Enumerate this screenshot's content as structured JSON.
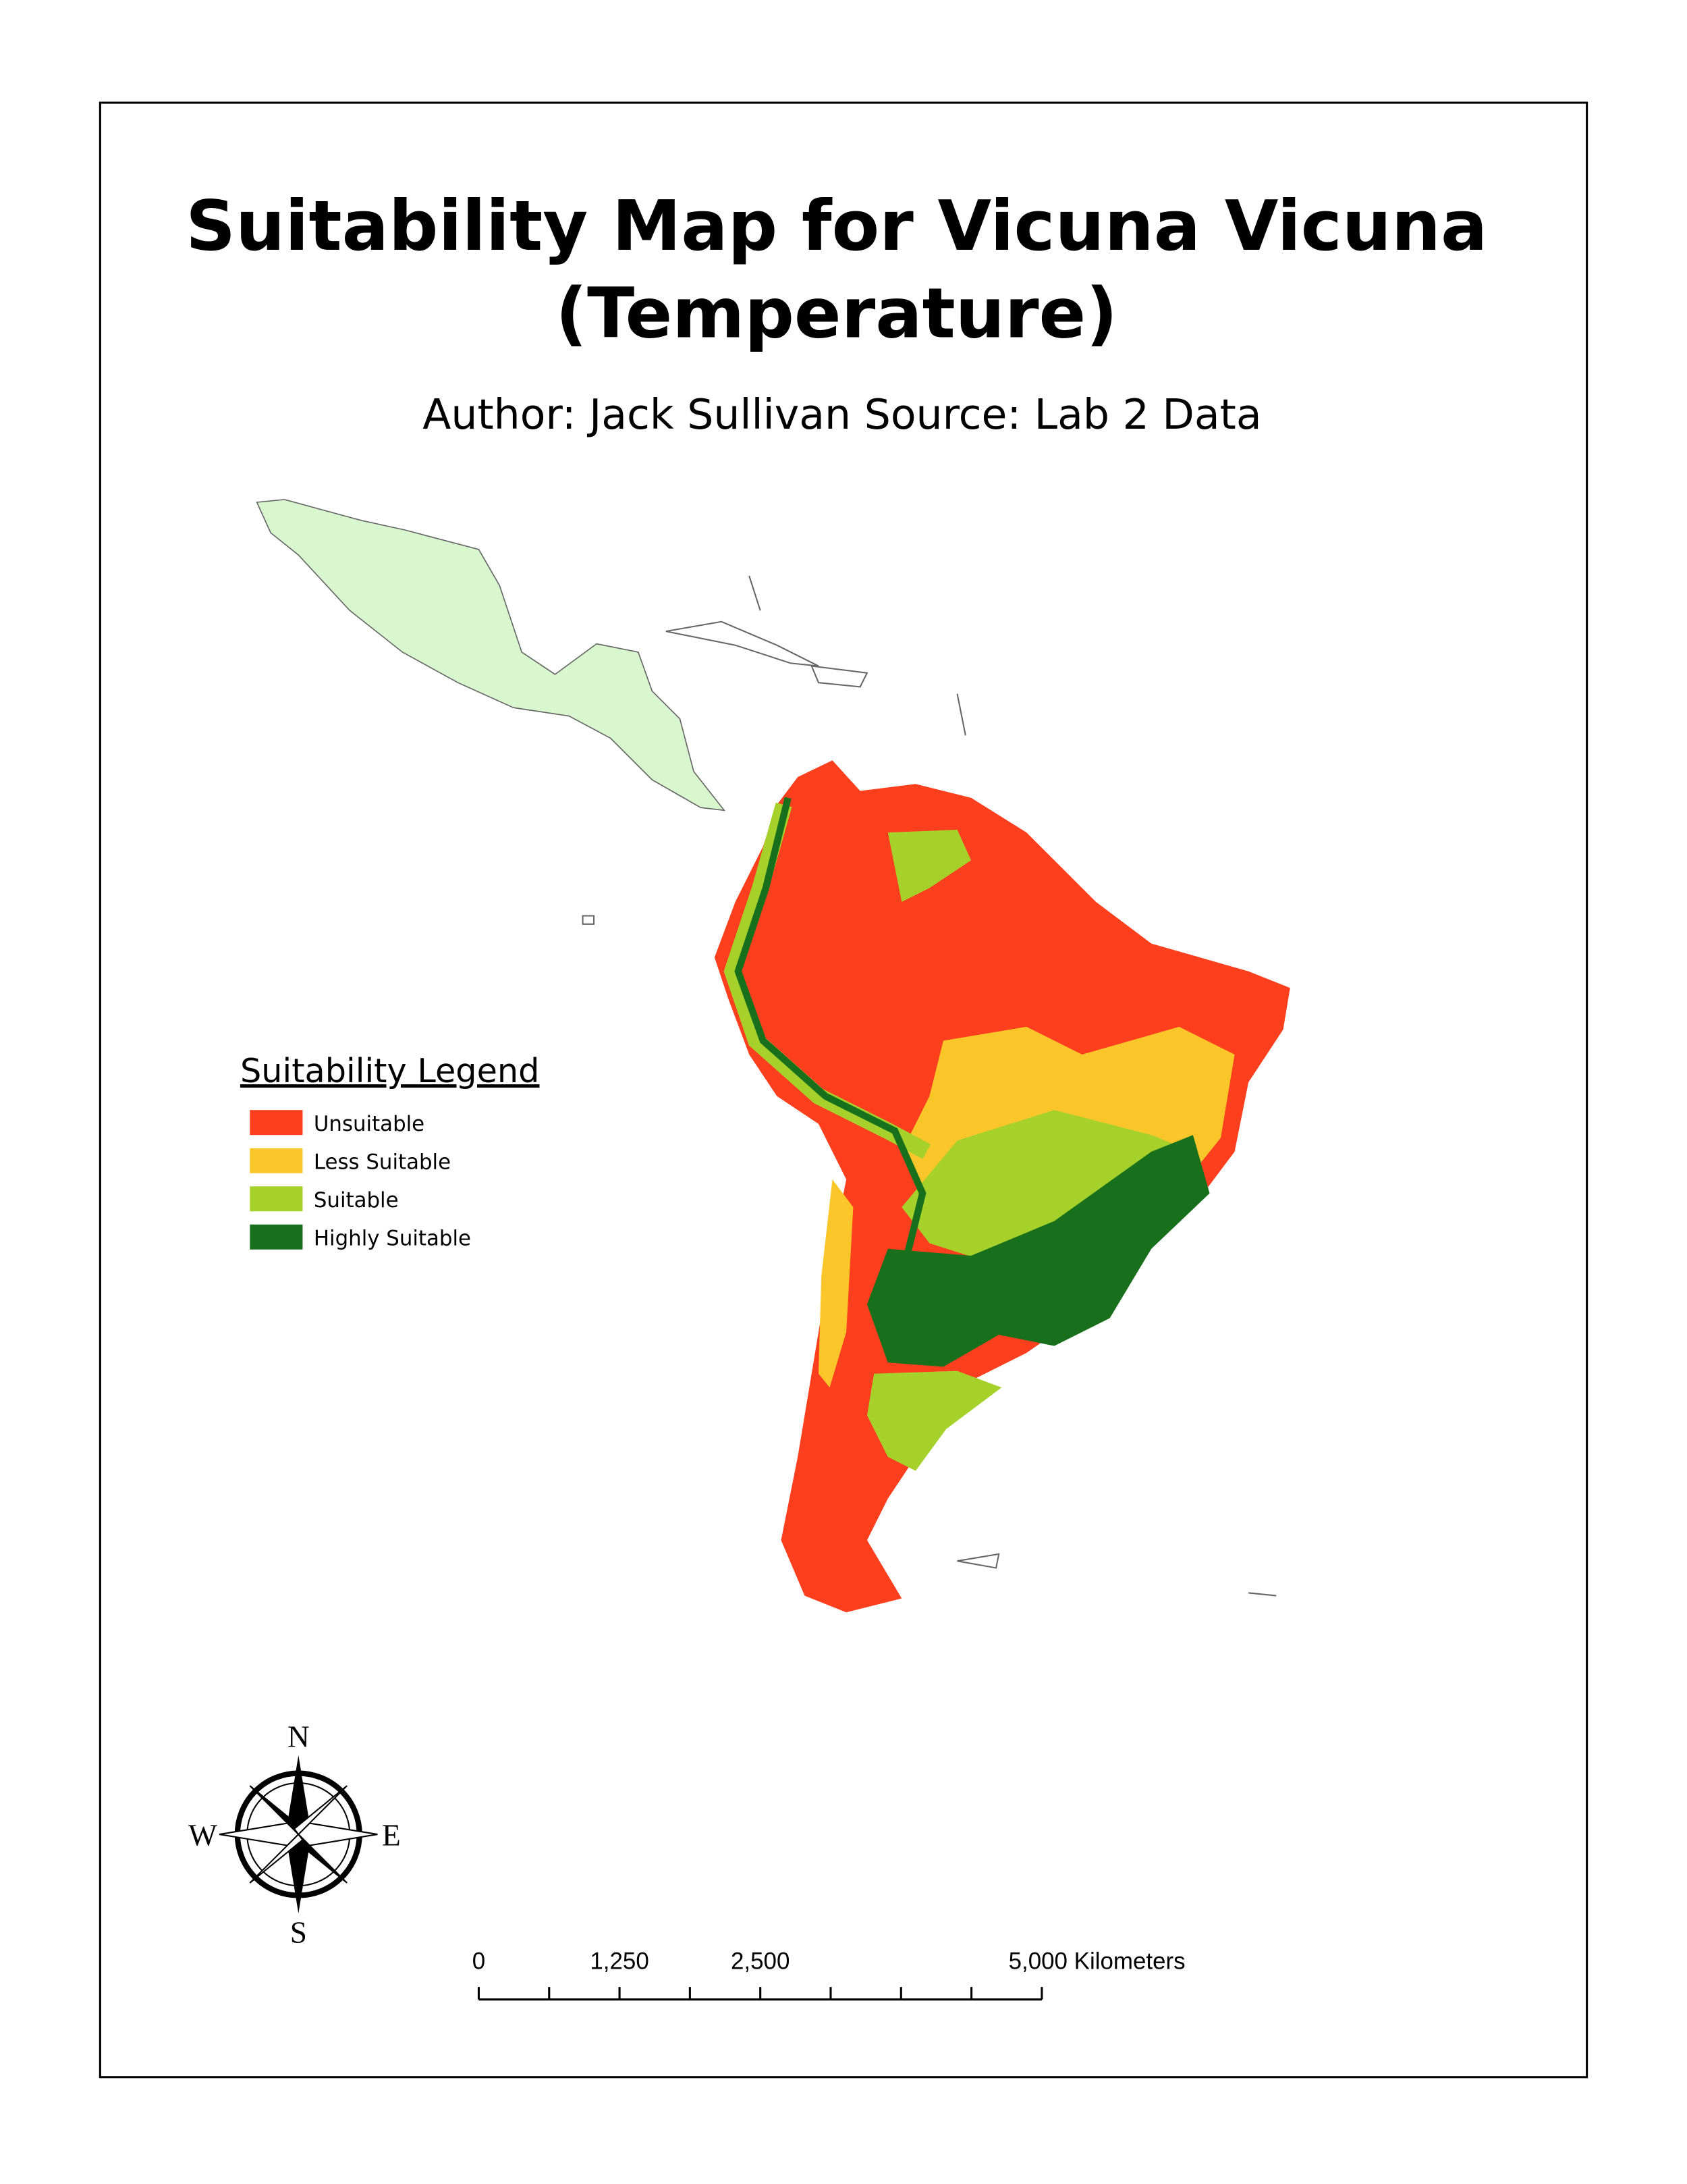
{
  "title": [
    "Suitability Map for Vicuna Vicuna",
    "(Temperature)"
  ],
  "subtitle": "Author: Jack Sullivan Source: Lab 2 Data",
  "legend": {
    "title": "Suitability Legend",
    "items": [
      {
        "label": "Unsuitable",
        "color": "#fd3f1e"
      },
      {
        "label": "Less Suitable",
        "color": "#fbc62a"
      },
      {
        "label": "Suitable",
        "color": "#a6d12a"
      },
      {
        "label": "Highly Suitable",
        "color": "#18701d"
      }
    ]
  },
  "compass": {
    "north": "N",
    "south": "S",
    "east": "E",
    "west": "W"
  },
  "scale_bar": {
    "xlim": [
      0,
      5000
    ],
    "ticks": [
      0,
      {
        "value": 1250,
        "label": "1,250"
      },
      {
        "value": 2500,
        "label": "2,500"
      },
      {
        "value": 5000,
        "label": "5,000 Kilometers"
      }
    ],
    "minor_ticks": [
      625,
      1875,
      3125,
      3750,
      4375
    ]
  }
}
